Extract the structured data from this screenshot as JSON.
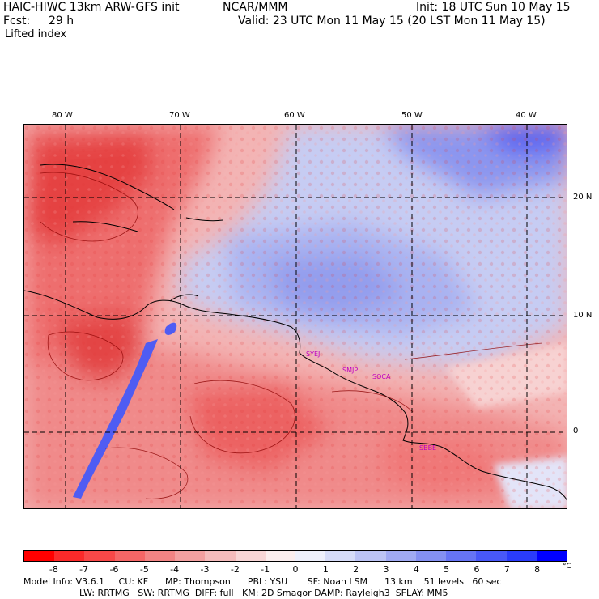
{
  "header": {
    "model": "HAIC-HIWC 13km ARW-GFS init",
    "org": "NCAR/MMM",
    "init": "Init: 18 UTC Sun 10 May 15",
    "fcst_label": "Fcst:",
    "fcst_value": "29 h",
    "valid": "Valid: 23 UTC Mon 11 May 15 (20 LST Mon 11 May 15)",
    "field": "Lifted index"
  },
  "map": {
    "longitude_labels": [
      "80 W",
      "70 W",
      "60 W",
      "50 W",
      "40 W"
    ],
    "latitude_labels": [
      "20 N",
      "10 N",
      "0"
    ],
    "stations": [
      "SYEJ",
      "SMJP",
      "SOCA",
      "SBBE"
    ]
  },
  "colorbar": {
    "labels": [
      "-8",
      "-7",
      "-6",
      "-5",
      "-4",
      "-3",
      "-2",
      "-1",
      "0",
      "1",
      "2",
      "3",
      "4",
      "5",
      "6",
      "7",
      "8"
    ],
    "unit": "°C",
    "colors": [
      "#ff0000",
      "#fb2a2a",
      "#f84848",
      "#f56666",
      "#f28484",
      "#f3a0a0",
      "#f5bcbc",
      "#f8d6d6",
      "#fbeeee",
      "#eef0fb",
      "#d6dcf8",
      "#bcc4f5",
      "#a0aaf3",
      "#8490f2",
      "#6674f5",
      "#4858f8",
      "#2a3cfb",
      "#0000ff"
    ]
  },
  "footer": {
    "line1": "Model Info: V3.6.1     CU: KF      MP: Thompson      PBL: YSU       SF: Noah LSM      13 km    51 levels   60 sec",
    "line2": "LW: RRTMG   SW: RRTMG  DIFF: full   KM: 2D Smagor DAMP: Rayleigh3  SFLAY: MM5"
  }
}
